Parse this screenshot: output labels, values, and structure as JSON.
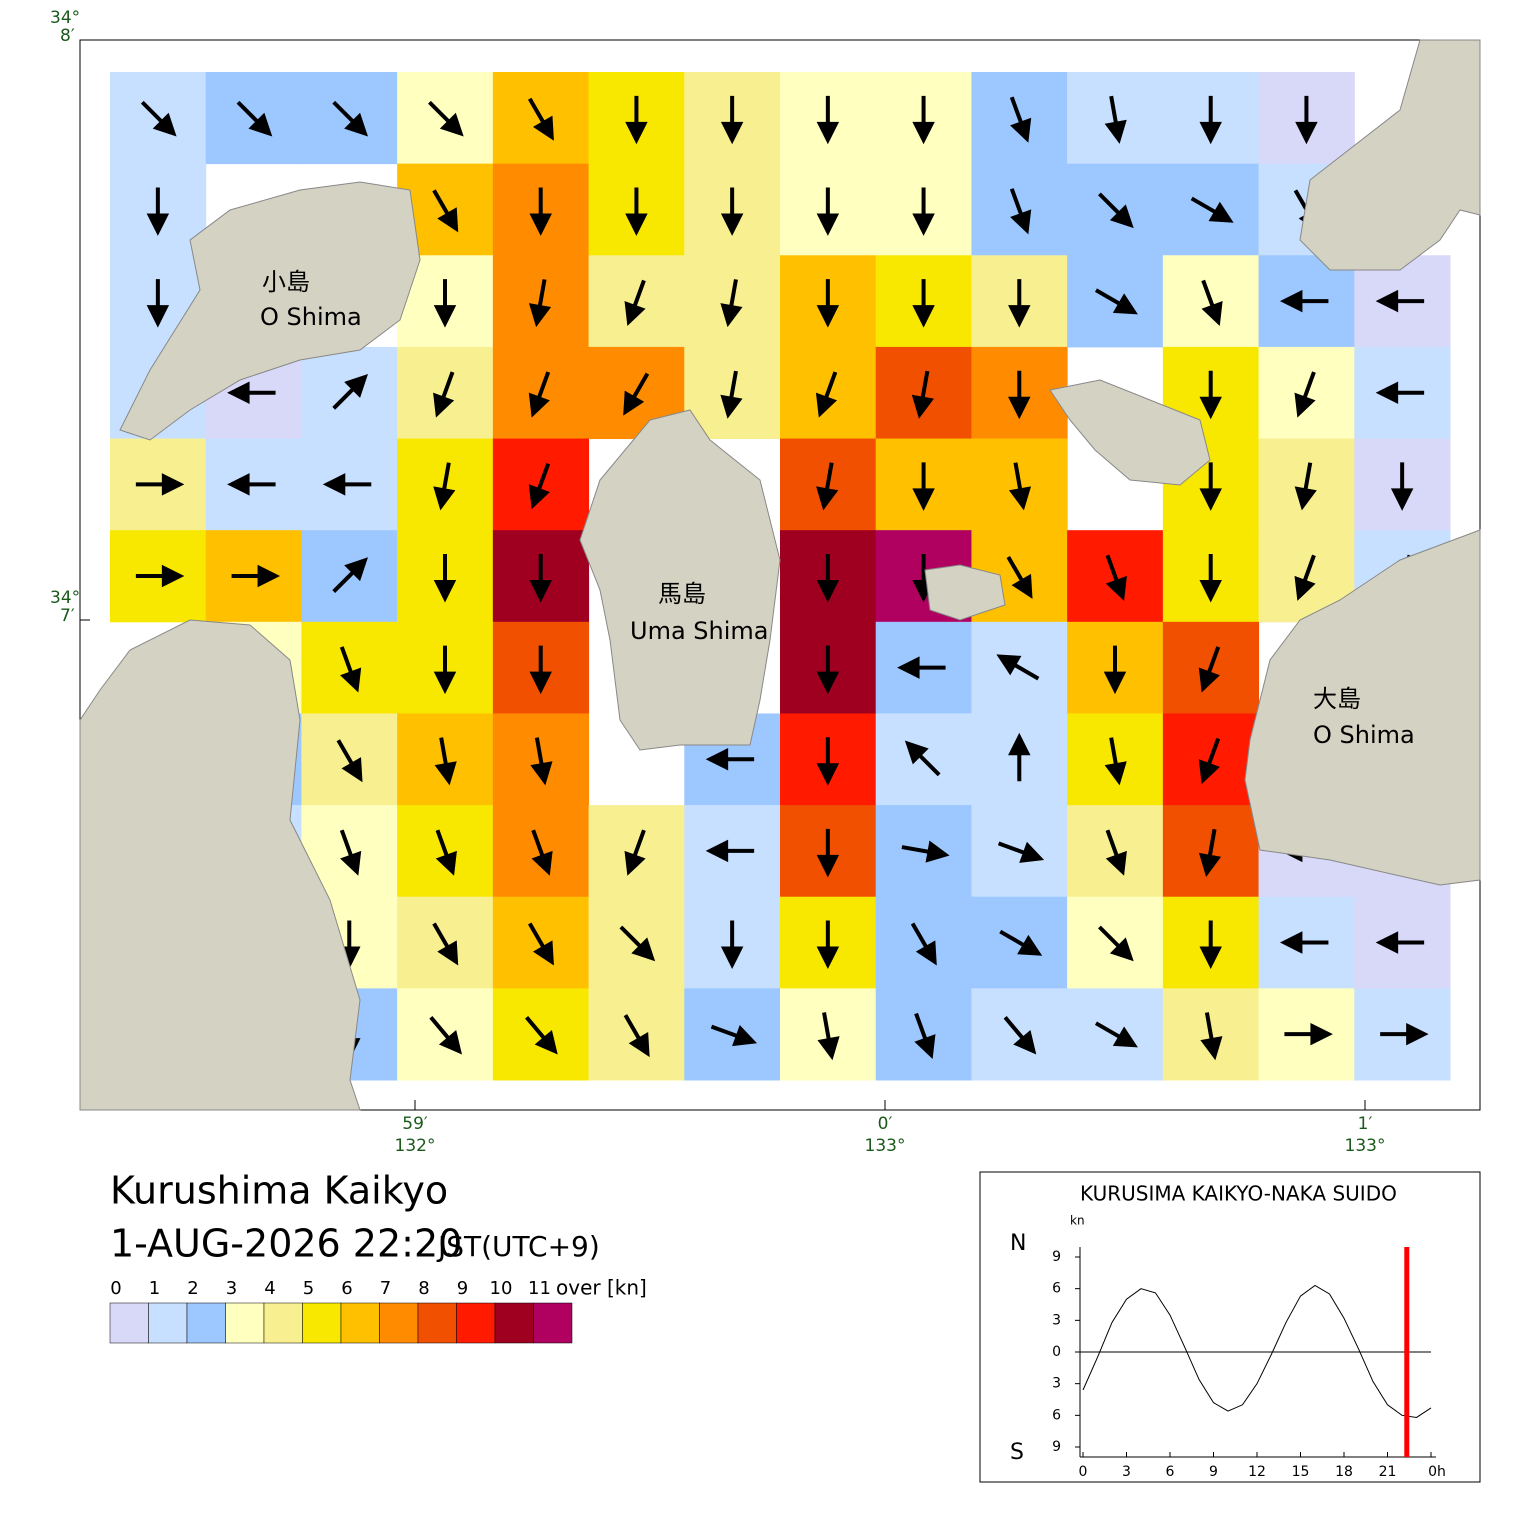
{
  "header": {
    "title": "Kurushima Kaikyo",
    "datetime": "1-AUG-2026 22:20",
    "timezone": "JST(UTC+9)"
  },
  "map": {
    "lat_ticks": [
      {
        "deg": "34°",
        "min": "8′"
      },
      {
        "deg": "34°",
        "min": "7′"
      }
    ],
    "lon_ticks": [
      {
        "min": "59′",
        "deg": "132°"
      },
      {
        "min": "0′",
        "deg": "133°"
      },
      {
        "min": "1′",
        "deg": "133°"
      }
    ],
    "islands": [
      {
        "jp": "小島",
        "en": "O Shima"
      },
      {
        "jp": "馬島",
        "en": "Uma Shima"
      },
      {
        "jp": "大島",
        "en": "O Shima"
      }
    ],
    "speed": [
      [
        1,
        2,
        2,
        3,
        6,
        5,
        4,
        3,
        3,
        2,
        1,
        1,
        0,
        null
      ],
      [
        1,
        null,
        null,
        6,
        7,
        5,
        4,
        3,
        3,
        2,
        2,
        2,
        1,
        null
      ],
      [
        1,
        null,
        null,
        3,
        7,
        4,
        4,
        6,
        5,
        4,
        2,
        3,
        2,
        0
      ],
      [
        1,
        0,
        1,
        4,
        7,
        7,
        4,
        6,
        8,
        7,
        null,
        5,
        3,
        1
      ],
      [
        4,
        1,
        1,
        5,
        9,
        null,
        null,
        8,
        6,
        6,
        null,
        5,
        4,
        0
      ],
      [
        5,
        6,
        2,
        5,
        10,
        null,
        null,
        10,
        11,
        6,
        9,
        5,
        4,
        1
      ],
      [
        null,
        3,
        5,
        5,
        8,
        null,
        null,
        10,
        2,
        1,
        6,
        8,
        null,
        null
      ],
      [
        null,
        2,
        4,
        6,
        7,
        null,
        2,
        9,
        1,
        1,
        5,
        9,
        null,
        null
      ],
      [
        null,
        1,
        3,
        5,
        7,
        4,
        1,
        8,
        2,
        1,
        4,
        8,
        0,
        0
      ],
      [
        null,
        0,
        3,
        4,
        6,
        4,
        1,
        5,
        2,
        2,
        3,
        5,
        1,
        0
      ],
      [
        null,
        0,
        2,
        3,
        5,
        4,
        2,
        3,
        2,
        1,
        1,
        4,
        3,
        1
      ]
    ],
    "direction": [
      [
        135,
        135,
        135,
        135,
        150,
        180,
        180,
        180,
        180,
        160,
        170,
        180,
        180,
        null
      ],
      [
        180,
        null,
        null,
        150,
        180,
        180,
        180,
        180,
        180,
        160,
        135,
        120,
        150,
        null
      ],
      [
        180,
        null,
        null,
        180,
        190,
        200,
        190,
        180,
        180,
        180,
        120,
        160,
        270,
        270
      ],
      [
        180,
        270,
        45,
        200,
        200,
        210,
        190,
        200,
        190,
        180,
        null,
        180,
        200,
        270
      ],
      [
        90,
        270,
        270,
        190,
        200,
        null,
        null,
        190,
        180,
        170,
        null,
        180,
        190,
        180
      ],
      [
        90,
        90,
        45,
        180,
        180,
        null,
        null,
        180,
        180,
        150,
        160,
        180,
        200,
        200
      ],
      [
        null,
        135,
        160,
        180,
        180,
        null,
        null,
        180,
        270,
        300,
        180,
        200,
        null,
        null
      ],
      [
        null,
        0,
        150,
        170,
        170,
        null,
        270,
        180,
        315,
        0,
        170,
        200,
        null,
        null
      ],
      [
        null,
        0,
        160,
        160,
        160,
        200,
        270,
        180,
        100,
        110,
        160,
        190,
        270,
        270
      ],
      [
        null,
        0,
        180,
        150,
        150,
        135,
        180,
        180,
        150,
        120,
        135,
        180,
        270,
        270
      ],
      [
        null,
        0,
        180,
        140,
        140,
        150,
        110,
        170,
        160,
        140,
        120,
        170,
        90,
        90
      ]
    ]
  },
  "legend": {
    "labels": [
      0,
      1,
      2,
      3,
      4,
      5,
      6,
      7,
      8,
      9,
      10,
      11
    ],
    "unit": "over [kn]",
    "colors": [
      "#d8d8f8",
      "#c8e0ff",
      "#9cc8ff",
      "#ffffc0",
      "#f8f090",
      "#f8e800",
      "#ffc000",
      "#ff8c00",
      "#f05000",
      "#ff1a00",
      "#a00020",
      "#b00060"
    ]
  },
  "tide": {
    "title": "KURUSIMA KAIKYO-NAKA SUIDO",
    "unit": "kn",
    "north": "N",
    "south": "S",
    "xlim": [
      0,
      24
    ],
    "ylim": [
      -9,
      9
    ],
    "xticks": [
      0,
      3,
      6,
      9,
      12,
      15,
      18,
      21,
      {
        "value": 24,
        "label": "0h"
      }
    ],
    "yticks": [
      {
        "value": 9,
        "label": "9"
      },
      {
        "value": 6,
        "label": "6"
      },
      {
        "value": 3,
        "label": "3"
      },
      0,
      {
        "value": -3,
        "label": "3"
      },
      {
        "value": -6,
        "label": "6"
      },
      {
        "value": -9,
        "label": "9"
      }
    ],
    "x": [
      0,
      1,
      2,
      3,
      4,
      5,
      6,
      7,
      8,
      9,
      10,
      11,
      12,
      13,
      14,
      15,
      16,
      17,
      18,
      19,
      20,
      21,
      22,
      23,
      24
    ],
    "values": [
      -3.6,
      -0.5,
      2.8,
      5,
      6,
      5.6,
      3.5,
      0.5,
      -2.6,
      -4.8,
      -5.6,
      -5,
      -3,
      -0.2,
      2.8,
      5.3,
      6.3,
      5.5,
      3.2,
      0.3,
      -2.8,
      -5,
      -6,
      -6.2,
      -5.3
    ],
    "current": 22.33,
    "current_color": "#ff0000"
  }
}
